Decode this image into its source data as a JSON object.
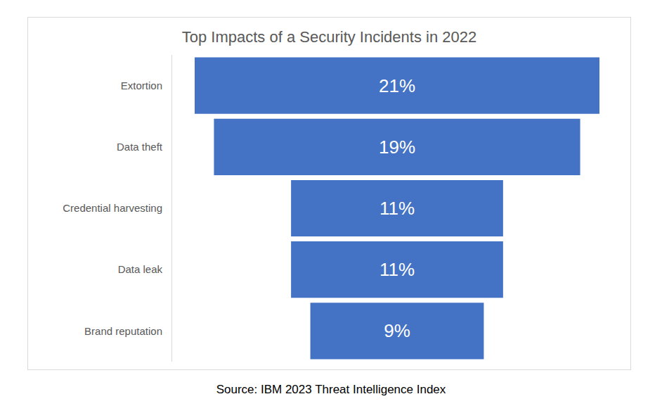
{
  "chart_data": {
    "type": "funnel",
    "title": "Top Impacts of a Security Incidents in 2022",
    "categories": [
      "Extortion",
      "Data theft",
      "Credential harvesting",
      "Data leak",
      "Brand reputation"
    ],
    "values": [
      21,
      19,
      11,
      11,
      9
    ],
    "value_labels": [
      "21%",
      "19%",
      "11%",
      "11%",
      "9%"
    ],
    "color": "#4472c4",
    "orientation": "horizontal",
    "data_labels": true,
    "tick_labels": "y",
    "grid": false,
    "source": "Source: IBM 2023 Threat Intelligence Index"
  }
}
